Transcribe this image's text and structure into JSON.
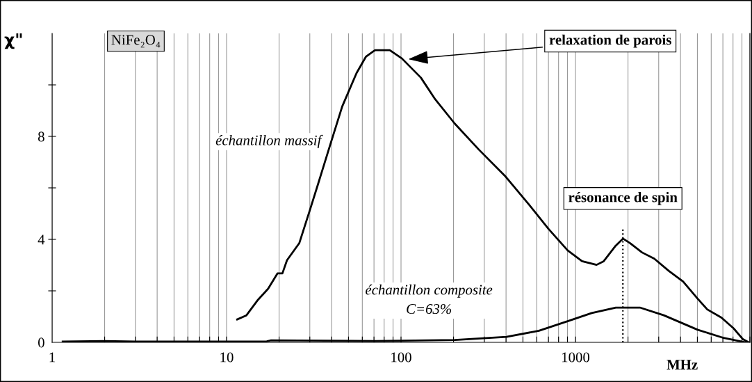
{
  "chart_data": {
    "type": "line",
    "xlabel": "MHz",
    "ylabel": "χ\"",
    "log": "x",
    "xlim": [
      1,
      10000
    ],
    "ylim": [
      0,
      12
    ],
    "xticks": [
      1,
      {
        "value": 2,
        "label": null
      },
      {
        "value": 3,
        "label": null
      },
      {
        "value": 4,
        "label": null
      },
      {
        "value": 5,
        "label": null
      },
      {
        "value": 6,
        "label": null
      },
      {
        "value": 7,
        "label": null
      },
      {
        "value": 8,
        "label": null
      },
      {
        "value": 9,
        "label": null
      },
      10,
      {
        "value": 20,
        "label": null
      },
      {
        "value": 30,
        "label": null
      },
      {
        "value": 40,
        "label": null
      },
      {
        "value": 50,
        "label": null
      },
      {
        "value": 60,
        "label": null
      },
      {
        "value": 70,
        "label": null
      },
      {
        "value": 80,
        "label": null
      },
      {
        "value": 90,
        "label": null
      },
      100,
      {
        "value": 200,
        "label": null
      },
      {
        "value": 300,
        "label": null
      },
      {
        "value": 400,
        "label": null
      },
      {
        "value": 500,
        "label": null
      },
      {
        "value": 600,
        "label": null
      },
      {
        "value": 700,
        "label": null
      },
      {
        "value": 800,
        "label": null
      },
      {
        "value": 900,
        "label": null
      },
      1000,
      {
        "value": 2000,
        "label": null
      },
      {
        "value": 3000,
        "label": null
      },
      {
        "value": 4000,
        "label": null
      },
      {
        "value": 5000,
        "label": null
      },
      {
        "value": 6000,
        "label": null
      },
      {
        "value": 7000,
        "label": null
      },
      {
        "value": 8000,
        "label": null
      },
      {
        "value": 9000,
        "label": null
      },
      {
        "value": 10000,
        "label": null
      }
    ],
    "yticks": [
      0,
      {
        "value": 2,
        "label": null
      },
      4,
      {
        "value": 6,
        "label": null
      },
      8,
      {
        "value": 10,
        "label": null
      }
    ],
    "grid": "x",
    "marker": "none",
    "line_style": "solid",
    "series": [
      {
        "name": "échantillon massif",
        "color": "#000000",
        "x": [
          11.5,
          13.0,
          15.0,
          17.3,
          19.6,
          20.9,
          22.2,
          26.1,
          30.1,
          33.6,
          39.3,
          46.0,
          55.6,
          63,
          69.3,
          71.2,
          86.2,
          101,
          130,
          157,
          203,
          279,
          395,
          543,
          700,
          902,
          1091,
          1321,
          1452,
          1703,
          1872,
          2060,
          2410,
          2830,
          3420,
          4140,
          5010,
          5690,
          6870,
          8070,
          9120,
          9840
        ],
        "values": [
          0.89,
          1.05,
          1.62,
          2.08,
          2.68,
          2.68,
          3.19,
          3.85,
          5.16,
          6.19,
          7.68,
          9.16,
          10.46,
          11.1,
          11.3,
          11.35,
          11.35,
          11.03,
          10.28,
          9.44,
          8.5,
          7.49,
          6.46,
          5.34,
          4.41,
          3.57,
          3.15,
          3.01,
          3.15,
          3.76,
          4.03,
          3.85,
          3.49,
          3.25,
          2.78,
          2.36,
          1.7,
          1.28,
          0.96,
          0.54,
          0.12,
          0.0
        ]
      },
      {
        "name": "échantillon composite\nC=63%",
        "color": "#000000",
        "x": [
          1.15,
          2,
          3,
          17,
          18,
          71,
          203,
          402,
          617,
          902,
          1240,
          1703,
          2340,
          3210,
          5010,
          7080,
          9450
        ],
        "values": [
          0.03,
          0.05,
          0.03,
          0.04,
          0.08,
          0.05,
          0.09,
          0.21,
          0.45,
          0.82,
          1.14,
          1.35,
          1.35,
          1.05,
          0.49,
          0.17,
          0.0
        ]
      }
    ],
    "ref_lines": [
      {
        "axis": "x",
        "value": 1870,
        "line_style": "dotted",
        "color": "#000000"
      }
    ],
    "annotations": [
      "NiFe₂O₄",
      {
        "text": "relaxation de parois",
        "x": 110,
        "y": 11.0
      },
      {
        "text": "résonance de spin",
        "x": 1870,
        "y": 4.03
      }
    ]
  }
}
